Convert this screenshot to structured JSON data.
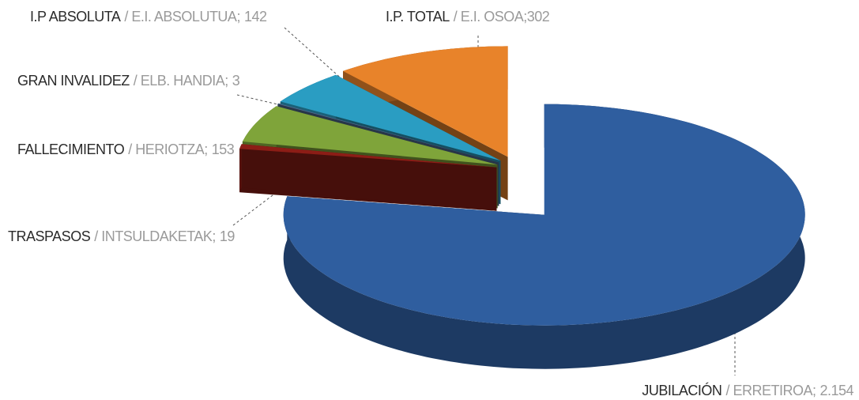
{
  "chart_data": {
    "type": "pie3d",
    "categories": [
      "JUBILACIÓN",
      "TRASPASOS",
      "FALLECIMIENTO",
      "GRAN INVALIDEZ",
      "I.P ABSOLUTA",
      "I.P. TOTAL"
    ],
    "sublabels": [
      "/ ERRETIROA;",
      "/ INTSULDAKETAK;",
      "/ HERIOTZA;",
      "/ ELB. HANDIA;",
      "/ E.I. ABSOLUTUA;",
      "/ E.I. OSOA;"
    ],
    "values": [
      2154,
      19,
      153,
      3,
      142,
      302
    ],
    "value_labels": [
      "2.154",
      "19",
      "153",
      "3",
      "142",
      "302"
    ],
    "colors": [
      "#2f5e9f",
      "#8c1d16",
      "#7fa43a",
      "#4d6b8f",
      "#2a9dc2",
      "#e8832a"
    ]
  }
}
